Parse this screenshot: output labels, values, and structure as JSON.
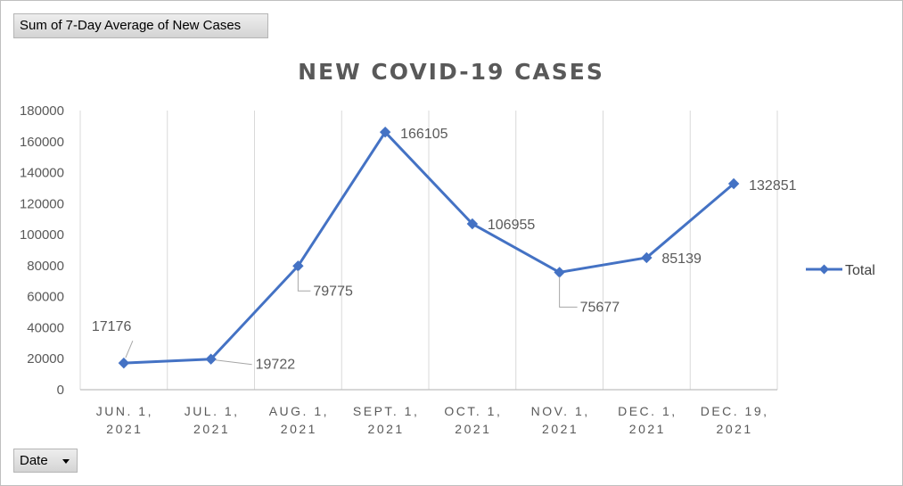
{
  "pivot": {
    "value_field_label": "Sum of 7-Day Average of New Cases",
    "axis_field_label": "Date"
  },
  "chart_data": {
    "type": "line",
    "title": "NEW COVID-19 CASES",
    "categories": [
      [
        "JUN. 1,",
        "2021"
      ],
      [
        "JUL. 1,",
        "2021"
      ],
      [
        "AUG. 1,",
        "2021"
      ],
      [
        "SEPT. 1,",
        "2021"
      ],
      [
        "OCT. 1,",
        "2021"
      ],
      [
        "NOV. 1,",
        "2021"
      ],
      [
        "DEC. 1,",
        "2021"
      ],
      [
        "DEC. 19,",
        "2021"
      ]
    ],
    "series": [
      {
        "name": "Total",
        "color": "#4472c4",
        "values": [
          17176,
          19722,
          79775,
          166105,
          106955,
          75677,
          85139,
          132851
        ]
      }
    ],
    "ylim": [
      0,
      180000
    ],
    "yticks": [
      0,
      20000,
      40000,
      60000,
      80000,
      100000,
      120000,
      140000,
      160000,
      180000
    ],
    "grid": "vertical",
    "legend_position": "right"
  }
}
